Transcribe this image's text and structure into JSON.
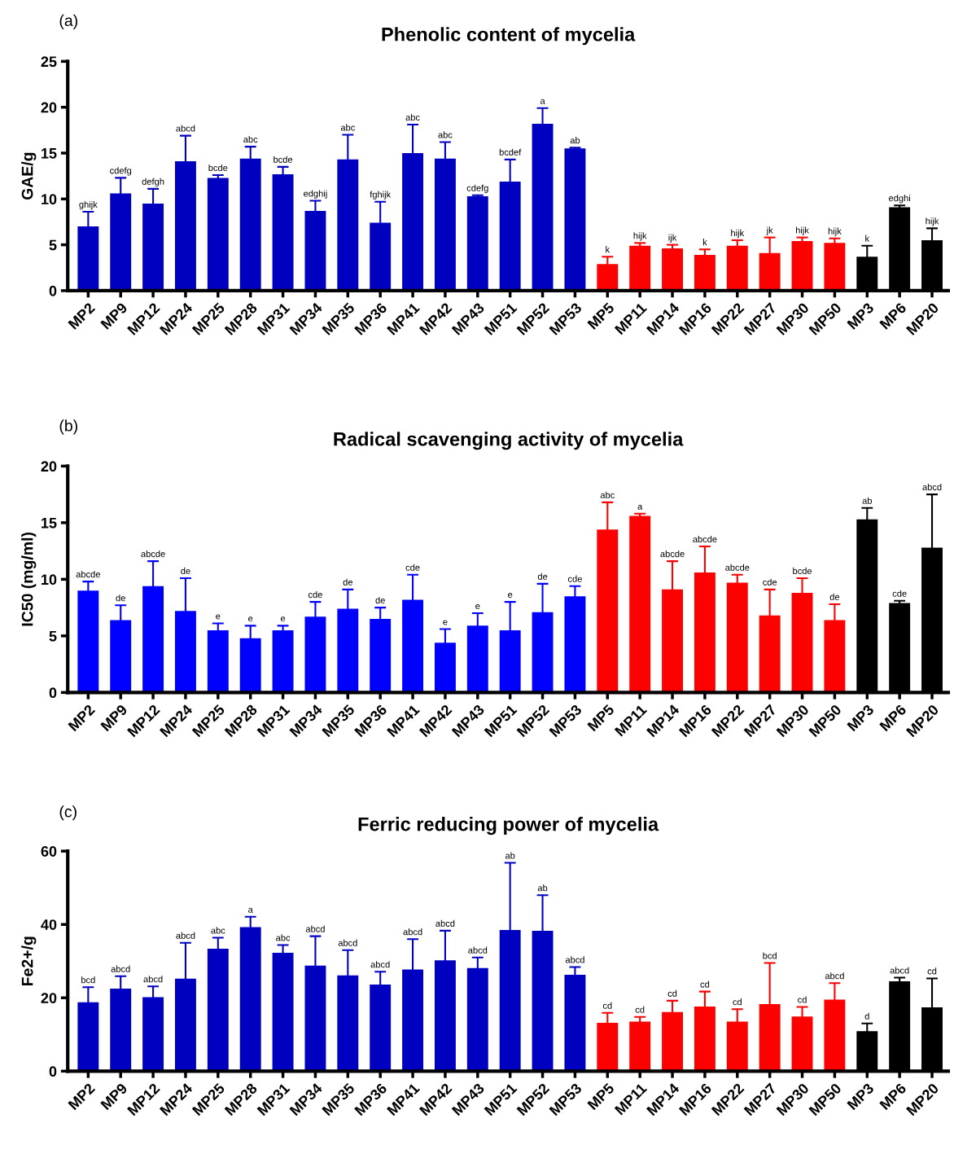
{
  "chart_data": [
    {
      "type": "bar",
      "title": "Phenolic content of mycelia",
      "ylabel": "GAE/g",
      "categories": [
        "MP2",
        "MP9",
        "MP12",
        "MP24",
        "MP25",
        "MP28",
        "MP31",
        "MP34",
        "MP35",
        "MP36",
        "MP41",
        "MP42",
        "MP43",
        "MP51",
        "MP52",
        "MP53",
        "MP5",
        "MP11",
        "MP14",
        "MP16",
        "MP22",
        "MP27",
        "MP30",
        "MP50",
        "MP3",
        "MP6",
        "MP20"
      ],
      "values": [
        7.0,
        10.6,
        9.5,
        14.1,
        12.3,
        14.4,
        12.7,
        8.7,
        14.3,
        7.4,
        15.0,
        14.4,
        10.3,
        11.9,
        18.2,
        15.5,
        2.9,
        4.9,
        4.6,
        3.9,
        4.9,
        4.1,
        5.4,
        5.2,
        3.7,
        9.1,
        5.5
      ],
      "errors": [
        1.6,
        1.7,
        1.6,
        2.8,
        0.3,
        1.3,
        0.8,
        1.1,
        2.7,
        2.3,
        3.1,
        1.8,
        0.1,
        2.4,
        1.7,
        0.1,
        0.8,
        0.3,
        0.4,
        0.6,
        0.6,
        1.7,
        0.4,
        0.5,
        1.2,
        0.2,
        1.3
      ],
      "colors": [
        "#0000c0",
        "#0000c0",
        "#0000c0",
        "#0000c0",
        "#0000c0",
        "#0000c0",
        "#0000c0",
        "#0000c0",
        "#0000c0",
        "#0000c0",
        "#0000c0",
        "#0000c0",
        "#0000c0",
        "#0000c0",
        "#0000c0",
        "#0000c0",
        "#ff0000",
        "#ff0000",
        "#ff0000",
        "#ff0000",
        "#ff0000",
        "#ff0000",
        "#ff0000",
        "#ff0000",
        "#000000",
        "#000000",
        "#000000"
      ],
      "ylim": [
        0,
        25
      ],
      "yticks": [
        0,
        5,
        10,
        15,
        20,
        25
      ],
      "grid": false,
      "legend": false,
      "annotations": [
        "(a)",
        {
          "text": "ghijk",
          "x": "MP2",
          "y": 8.6
        },
        {
          "text": "cdefg",
          "x": "MP9",
          "y": 12.3
        },
        {
          "text": "defgh",
          "x": "MP12",
          "y": 11.1
        },
        {
          "text": "abcd",
          "x": "MP24",
          "y": 16.9
        },
        {
          "text": "bcde",
          "x": "MP25",
          "y": 12.6
        },
        {
          "text": "abc",
          "x": "MP28",
          "y": 15.7
        },
        {
          "text": "bcde",
          "x": "MP31",
          "y": 13.5
        },
        {
          "text": "edghij",
          "x": "MP34",
          "y": 9.8
        },
        {
          "text": "abc",
          "x": "MP35",
          "y": 17.0
        },
        {
          "text": "fghijk",
          "x": "MP36",
          "y": 9.7
        },
        {
          "text": "abc",
          "x": "MP41",
          "y": 18.1
        },
        {
          "text": "abc",
          "x": "MP42",
          "y": 16.2
        },
        {
          "text": "cdefg",
          "x": "MP43",
          "y": 10.4
        },
        {
          "text": "bcdef",
          "x": "MP51",
          "y": 14.3
        },
        {
          "text": "a",
          "x": "MP52",
          "y": 19.9
        },
        {
          "text": "ab",
          "x": "MP53",
          "y": 15.6
        },
        {
          "text": "k",
          "x": "MP5",
          "y": 3.7
        },
        {
          "text": "hijk",
          "x": "MP11",
          "y": 5.2
        },
        {
          "text": "ijk",
          "x": "MP14",
          "y": 5.0
        },
        {
          "text": "k",
          "x": "MP16",
          "y": 4.5
        },
        {
          "text": "hijk",
          "x": "MP22",
          "y": 5.5
        },
        {
          "text": "jk",
          "x": "MP27",
          "y": 5.8
        },
        {
          "text": "hijk",
          "x": "MP30",
          "y": 5.8
        },
        {
          "text": "hijk",
          "x": "MP50",
          "y": 5.7
        },
        {
          "text": "k",
          "x": "MP3",
          "y": 4.9
        },
        {
          "text": "edghi",
          "x": "MP6",
          "y": 9.3
        },
        {
          "text": "hijk",
          "x": "MP20",
          "y": 6.8
        }
      ]
    },
    {
      "type": "bar",
      "title": "Radical scavenging activity of mycelia",
      "ylabel": "IC50 (mg/ml)",
      "categories": [
        "MP2",
        "MP9",
        "MP12",
        "MP24",
        "MP25",
        "MP28",
        "MP31",
        "MP34",
        "MP35",
        "MP36",
        "MP41",
        "MP42",
        "MP43",
        "MP51",
        "MP52",
        "MP53",
        "MP5",
        "MP11",
        "MP14",
        "MP16",
        "MP22",
        "MP27",
        "MP30",
        "MP50",
        "MP3",
        "MP6",
        "MP20"
      ],
      "values": [
        9.0,
        6.4,
        9.4,
        7.2,
        5.5,
        4.8,
        5.5,
        6.7,
        7.4,
        6.5,
        8.2,
        4.4,
        5.9,
        5.5,
        7.1,
        8.5,
        14.4,
        15.6,
        9.1,
        10.6,
        9.7,
        6.8,
        8.8,
        6.4,
        15.3,
        7.9,
        12.8
      ],
      "errors": [
        0.8,
        1.3,
        2.2,
        2.9,
        0.6,
        1.1,
        0.4,
        1.3,
        1.7,
        1.0,
        2.2,
        1.2,
        1.1,
        2.5,
        2.5,
        0.9,
        2.4,
        0.2,
        2.5,
        2.3,
        0.7,
        2.3,
        1.3,
        1.4,
        1.0,
        0.2,
        4.7
      ],
      "colors": [
        "#0000ff",
        "#0000ff",
        "#0000ff",
        "#0000ff",
        "#0000ff",
        "#0000ff",
        "#0000ff",
        "#0000ff",
        "#0000ff",
        "#0000ff",
        "#0000ff",
        "#0000ff",
        "#0000ff",
        "#0000ff",
        "#0000ff",
        "#0000ff",
        "#ff0000",
        "#ff0000",
        "#ff0000",
        "#ff0000",
        "#ff0000",
        "#ff0000",
        "#ff0000",
        "#ff0000",
        "#000000",
        "#000000",
        "#000000"
      ],
      "ylim": [
        0,
        20
      ],
      "yticks": [
        0,
        5,
        10,
        15,
        20
      ],
      "grid": false,
      "legend": false,
      "annotations": [
        "(b)",
        {
          "text": "abcde",
          "x": "MP2",
          "y": 9.8
        },
        {
          "text": "de",
          "x": "MP9",
          "y": 7.7
        },
        {
          "text": "abcde",
          "x": "MP12",
          "y": 11.6
        },
        {
          "text": "de",
          "x": "MP24",
          "y": 10.1
        },
        {
          "text": "e",
          "x": "MP25",
          "y": 6.1
        },
        {
          "text": "e",
          "x": "MP28",
          "y": 5.9
        },
        {
          "text": "e",
          "x": "MP31",
          "y": 5.9
        },
        {
          "text": "cde",
          "x": "MP34",
          "y": 8.0
        },
        {
          "text": "de",
          "x": "MP35",
          "y": 9.1
        },
        {
          "text": "de",
          "x": "MP36",
          "y": 7.5
        },
        {
          "text": "cde",
          "x": "MP41",
          "y": 10.4
        },
        {
          "text": "e",
          "x": "MP42",
          "y": 5.6
        },
        {
          "text": "e",
          "x": "MP43",
          "y": 7.0
        },
        {
          "text": "e",
          "x": "MP51",
          "y": 8.0
        },
        {
          "text": "de",
          "x": "MP52",
          "y": 9.6
        },
        {
          "text": "cde",
          "x": "MP53",
          "y": 9.4
        },
        {
          "text": "abc",
          "x": "MP5",
          "y": 16.8
        },
        {
          "text": "a",
          "x": "MP11",
          "y": 15.8
        },
        {
          "text": "abcde",
          "x": "MP14",
          "y": 11.6
        },
        {
          "text": "abcde",
          "x": "MP16",
          "y": 12.9
        },
        {
          "text": "abcde",
          "x": "MP22",
          "y": 10.4
        },
        {
          "text": "cde",
          "x": "MP27",
          "y": 9.1
        },
        {
          "text": "bcde",
          "x": "MP30",
          "y": 10.1
        },
        {
          "text": "de",
          "x": "MP50",
          "y": 7.8
        },
        {
          "text": "ab",
          "x": "MP3",
          "y": 16.3
        },
        {
          "text": "cde",
          "x": "MP6",
          "y": 8.1
        },
        {
          "text": "abcd",
          "x": "MP20",
          "y": 17.5
        }
      ]
    },
    {
      "type": "bar",
      "title": "Ferric reducing power of mycelia",
      "ylabel": "Fe2+/g",
      "categories": [
        "MP2",
        "MP9",
        "MP12",
        "MP24",
        "MP25",
        "MP28",
        "MP31",
        "MP34",
        "MP35",
        "MP36",
        "MP41",
        "MP42",
        "MP43",
        "MP51",
        "MP52",
        "MP53",
        "MP5",
        "MP11",
        "MP14",
        "MP16",
        "MP22",
        "MP27",
        "MP30",
        "MP50",
        "MP3",
        "MP6",
        "MP20"
      ],
      "values": [
        18.8,
        22.5,
        20.2,
        25.2,
        33.4,
        39.3,
        32.3,
        28.8,
        26.1,
        23.6,
        27.7,
        30.2,
        28.1,
        38.5,
        38.3,
        26.3,
        13.2,
        13.5,
        16.1,
        17.6,
        13.5,
        18.3,
        14.9,
        19.5,
        10.9,
        24.5,
        17.4
      ],
      "errors": [
        4.1,
        3.4,
        2.9,
        9.8,
        3.0,
        2.8,
        2.1,
        8.0,
        6.9,
        3.5,
        8.3,
        8.1,
        2.9,
        18.3,
        9.7,
        2.1,
        2.7,
        1.3,
        3.1,
        4.1,
        3.4,
        11.2,
        2.6,
        4.5,
        2.1,
        1.0,
        7.9
      ],
      "colors": [
        "#0000c0",
        "#0000c0",
        "#0000c0",
        "#0000c0",
        "#0000c0",
        "#0000c0",
        "#0000c0",
        "#0000c0",
        "#0000c0",
        "#0000c0",
        "#0000c0",
        "#0000c0",
        "#0000c0",
        "#0000c0",
        "#0000c0",
        "#0000c0",
        "#ff0000",
        "#ff0000",
        "#ff0000",
        "#ff0000",
        "#ff0000",
        "#ff0000",
        "#ff0000",
        "#ff0000",
        "#000000",
        "#000000",
        "#000000"
      ],
      "ylim": [
        0,
        60
      ],
      "yticks": [
        0,
        20,
        40,
        60
      ],
      "grid": false,
      "legend": false,
      "annotations": [
        "(c)",
        {
          "text": "bcd",
          "x": "MP2",
          "y": 22.9
        },
        {
          "text": "abcd",
          "x": "MP9",
          "y": 25.9
        },
        {
          "text": "abcd",
          "x": "MP12",
          "y": 23.1
        },
        {
          "text": "abcd",
          "x": "MP24",
          "y": 35.0
        },
        {
          "text": "abc",
          "x": "MP25",
          "y": 36.4
        },
        {
          "text": "a",
          "x": "MP28",
          "y": 42.1
        },
        {
          "text": "abc",
          "x": "MP31",
          "y": 34.4
        },
        {
          "text": "abcd",
          "x": "MP34",
          "y": 36.8
        },
        {
          "text": "abcd",
          "x": "MP35",
          "y": 33.0
        },
        {
          "text": "abcd",
          "x": "MP36",
          "y": 27.1
        },
        {
          "text": "abcd",
          "x": "MP41",
          "y": 36.0
        },
        {
          "text": "abcd",
          "x": "MP42",
          "y": 38.3
        },
        {
          "text": "abcd",
          "x": "MP43",
          "y": 31.0
        },
        {
          "text": "ab",
          "x": "MP51",
          "y": 56.8
        },
        {
          "text": "ab",
          "x": "MP52",
          "y": 48.0
        },
        {
          "text": "abcd",
          "x": "MP53",
          "y": 28.4
        },
        {
          "text": "cd",
          "x": "MP5",
          "y": 15.9
        },
        {
          "text": "cd",
          "x": "MP11",
          "y": 14.8
        },
        {
          "text": "cd",
          "x": "MP14",
          "y": 19.2
        },
        {
          "text": "cd",
          "x": "MP16",
          "y": 21.7
        },
        {
          "text": "cd",
          "x": "MP22",
          "y": 16.9
        },
        {
          "text": "bcd",
          "x": "MP27",
          "y": 29.5
        },
        {
          "text": "cd",
          "x": "MP30",
          "y": 17.5
        },
        {
          "text": "abcd",
          "x": "MP50",
          "y": 24.0
        },
        {
          "text": "d",
          "x": "MP3",
          "y": 13.0
        },
        {
          "text": "abcd",
          "x": "MP6",
          "y": 25.5
        },
        {
          "text": "cd",
          "x": "MP20",
          "y": 25.3
        }
      ]
    }
  ]
}
